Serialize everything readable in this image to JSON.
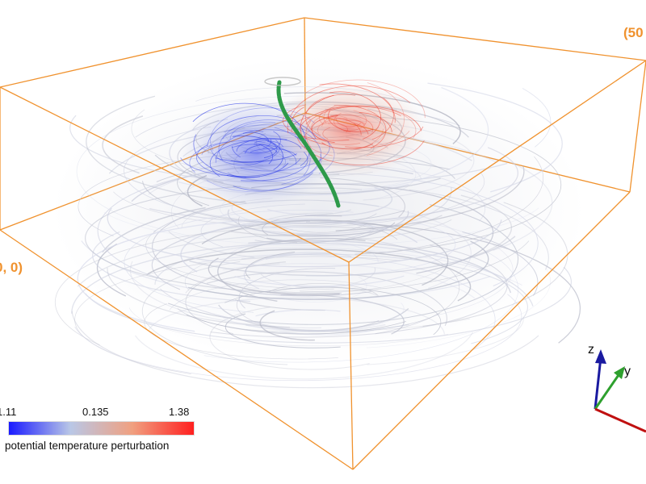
{
  "scene": {
    "corner_labels": {
      "top_right": "(50",
      "left": "0, 0)"
    },
    "box_color": "#f0922e",
    "trajectory_color": "#2e9a4a"
  },
  "colorbar": {
    "min_label": "1.11",
    "mid_label": "0.135",
    "max_label": "1.38",
    "title": "potential temperature perturbation",
    "colors": [
      "#1a1aff",
      "#b9c7e6",
      "#f0a080",
      "#ff2020"
    ]
  },
  "axes_triad": {
    "z_label": "z",
    "y_label": "y",
    "z_color": "#1a1aa0",
    "y_color": "#2ea02e",
    "x_color": "#c01010"
  }
}
